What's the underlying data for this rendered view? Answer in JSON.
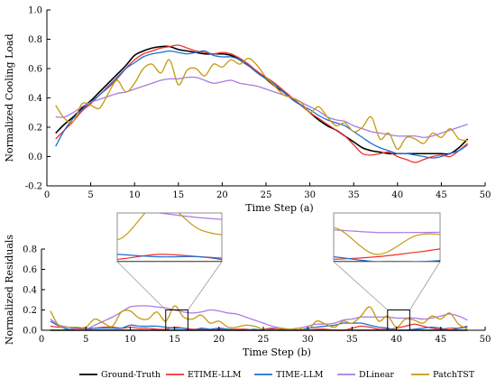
{
  "figure": {
    "legend": [
      {
        "name": "Ground-Truth",
        "color": "#000000"
      },
      {
        "name": "ETIME-LLM",
        "color": "#f0302a"
      },
      {
        "name": "TIME-LLM",
        "color": "#1f6fd6"
      },
      {
        "name": "DLinear",
        "color": "#a97be2"
      },
      {
        "name": "PatchTST",
        "color": "#c39a10"
      }
    ],
    "legend_placement": "bottom-center"
  },
  "chart_data": [
    {
      "type": "line",
      "xlabel": "Time Step (a)",
      "ylabel": "Normalized Cooling Load",
      "xlim": [
        0,
        50
      ],
      "ylim": [
        -0.2,
        1.0
      ],
      "xticks": [
        "0",
        "5",
        "10",
        "15",
        "20",
        "25",
        "30",
        "35",
        "40",
        "45",
        "50"
      ],
      "yticks": [
        "-0.2",
        "0.0",
        "0.2",
        "0.4",
        "0.6",
        "0.8",
        "1.0"
      ],
      "grid": false,
      "x": [
        1,
        2,
        3,
        4,
        5,
        6,
        7,
        8,
        9,
        10,
        11,
        12,
        13,
        14,
        15,
        16,
        17,
        18,
        19,
        20,
        21,
        22,
        23,
        24,
        25,
        26,
        27,
        28,
        29,
        30,
        31,
        32,
        33,
        34,
        35,
        36,
        37,
        38,
        39,
        40,
        41,
        42,
        43,
        44,
        45,
        46,
        47,
        48
      ],
      "series": [
        {
          "name": "Ground-Truth",
          "color": "#000000",
          "values": [
            0.16,
            0.22,
            0.27,
            0.33,
            0.38,
            0.44,
            0.5,
            0.56,
            0.62,
            0.69,
            0.72,
            0.74,
            0.75,
            0.75,
            0.73,
            0.72,
            0.71,
            0.7,
            0.7,
            0.7,
            0.69,
            0.66,
            0.62,
            0.58,
            0.53,
            0.48,
            0.44,
            0.39,
            0.35,
            0.3,
            0.25,
            0.21,
            0.18,
            0.14,
            0.1,
            0.06,
            0.04,
            0.03,
            0.02,
            0.02,
            0.02,
            0.02,
            0.02,
            0.02,
            0.02,
            0.02,
            0.06,
            0.12
          ]
        },
        {
          "name": "ETIME-LLM",
          "color": "#f0302a",
          "values": [
            0.12,
            0.18,
            0.24,
            0.31,
            0.36,
            0.42,
            0.47,
            0.53,
            0.6,
            0.66,
            0.7,
            0.72,
            0.74,
            0.75,
            0.76,
            0.74,
            0.72,
            0.71,
            0.7,
            0.71,
            0.7,
            0.67,
            0.63,
            0.58,
            0.54,
            0.5,
            0.45,
            0.4,
            0.35,
            0.3,
            0.26,
            0.22,
            0.18,
            0.14,
            0.08,
            0.02,
            0.01,
            0.02,
            0.03,
            0.0,
            -0.02,
            -0.04,
            -0.02,
            0.0,
            0.01,
            0.0,
            0.04,
            0.09
          ]
        },
        {
          "name": "TIME-LLM",
          "color": "#1f6fd6",
          "values": [
            0.07,
            0.18,
            0.26,
            0.32,
            0.37,
            0.42,
            0.48,
            0.54,
            0.6,
            0.64,
            0.68,
            0.7,
            0.71,
            0.72,
            0.71,
            0.7,
            0.71,
            0.72,
            0.69,
            0.68,
            0.68,
            0.66,
            0.62,
            0.57,
            0.53,
            0.49,
            0.44,
            0.39,
            0.35,
            0.32,
            0.28,
            0.25,
            0.23,
            0.21,
            0.17,
            0.13,
            0.09,
            0.06,
            0.04,
            0.02,
            0.02,
            0.01,
            0.0,
            -0.01,
            0.0,
            0.02,
            0.04,
            0.08
          ]
        },
        {
          "name": "DLinear",
          "color": "#a97be2",
          "values": [
            0.27,
            0.27,
            0.3,
            0.34,
            0.37,
            0.39,
            0.41,
            0.43,
            0.44,
            0.46,
            0.48,
            0.5,
            0.52,
            0.53,
            0.53,
            0.54,
            0.54,
            0.52,
            0.5,
            0.51,
            0.52,
            0.5,
            0.49,
            0.48,
            0.46,
            0.44,
            0.42,
            0.4,
            0.37,
            0.34,
            0.31,
            0.27,
            0.25,
            0.24,
            0.21,
            0.19,
            0.17,
            0.16,
            0.15,
            0.14,
            0.14,
            0.14,
            0.13,
            0.14,
            0.16,
            0.18,
            0.2,
            0.22
          ]
        },
        {
          "name": "PatchTST",
          "color": "#c39a10",
          "values": [
            0.35,
            0.26,
            0.24,
            0.36,
            0.35,
            0.33,
            0.43,
            0.52,
            0.44,
            0.5,
            0.6,
            0.63,
            0.57,
            0.66,
            0.49,
            0.59,
            0.6,
            0.55,
            0.63,
            0.61,
            0.66,
            0.63,
            0.67,
            0.62,
            0.54,
            0.48,
            0.42,
            0.4,
            0.37,
            0.3,
            0.34,
            0.27,
            0.21,
            0.23,
            0.17,
            0.2,
            0.27,
            0.12,
            0.16,
            0.05,
            0.13,
            0.12,
            0.09,
            0.16,
            0.13,
            0.19,
            0.12,
            0.11
          ]
        }
      ]
    },
    {
      "type": "line",
      "xlabel": "Time Step (b)",
      "ylabel": "Normalized Residuals",
      "xlim": [
        0,
        50
      ],
      "ylim": [
        0,
        0.8
      ],
      "xticks": [
        "0",
        "5",
        "10",
        "15",
        "20",
        "25",
        "30",
        "35",
        "40",
        "45",
        "50"
      ],
      "yticks": [
        "0.0",
        "0.2",
        "0.4",
        "0.6",
        "0.8"
      ],
      "grid": false,
      "x": [
        1,
        2,
        3,
        4,
        5,
        6,
        7,
        8,
        9,
        10,
        11,
        12,
        13,
        14,
        15,
        16,
        17,
        18,
        19,
        20,
        21,
        22,
        23,
        24,
        25,
        26,
        27,
        28,
        29,
        30,
        31,
        32,
        33,
        34,
        35,
        36,
        37,
        38,
        39,
        40,
        41,
        42,
        43,
        44,
        45,
        46,
        47,
        48
      ],
      "series": [
        {
          "name": "Ground-Truth",
          "color": "#000000",
          "values": [
            0,
            0,
            0,
            0,
            0,
            0,
            0,
            0,
            0,
            0,
            0,
            0,
            0,
            0,
            0,
            0,
            0,
            0,
            0,
            0,
            0,
            0,
            0,
            0,
            0,
            0,
            0,
            0,
            0,
            0,
            0,
            0,
            0,
            0,
            0,
            0,
            0,
            0,
            0,
            0,
            0,
            0,
            0,
            0,
            0,
            0,
            0,
            0
          ]
        },
        {
          "name": "ETIME-LLM",
          "color": "#f0302a",
          "values": [
            0.04,
            0.03,
            0.03,
            0.02,
            0.02,
            0.02,
            0.03,
            0.03,
            0.02,
            0.03,
            0.02,
            0.02,
            0.01,
            0.01,
            0.03,
            0.02,
            0.01,
            0.01,
            0.0,
            0.01,
            0.01,
            0.01,
            0.01,
            0.0,
            0.01,
            0.02,
            0.01,
            0.01,
            0.0,
            0.0,
            0.01,
            0.01,
            0.0,
            0.0,
            0.02,
            0.04,
            0.03,
            0.01,
            0.01,
            0.02,
            0.04,
            0.06,
            0.04,
            0.02,
            0.01,
            0.02,
            0.02,
            0.03
          ]
        },
        {
          "name": "TIME-LLM",
          "color": "#1f6fd6",
          "values": [
            0.09,
            0.04,
            0.01,
            0.01,
            0.01,
            0.02,
            0.02,
            0.02,
            0.02,
            0.05,
            0.04,
            0.04,
            0.04,
            0.03,
            0.02,
            0.02,
            0.0,
            0.02,
            0.01,
            0.02,
            0.01,
            0.0,
            0.0,
            0.01,
            0.0,
            0.01,
            0.0,
            0.0,
            0.0,
            0.02,
            0.03,
            0.04,
            0.05,
            0.07,
            0.07,
            0.07,
            0.05,
            0.03,
            0.02,
            0.0,
            0.0,
            0.01,
            0.02,
            0.03,
            0.02,
            0.0,
            0.02,
            0.04
          ]
        },
        {
          "name": "DLinear",
          "color": "#a97be2",
          "values": [
            0.11,
            0.05,
            0.03,
            0.01,
            0.01,
            0.05,
            0.09,
            0.13,
            0.18,
            0.23,
            0.24,
            0.24,
            0.23,
            0.22,
            0.2,
            0.18,
            0.17,
            0.18,
            0.2,
            0.19,
            0.17,
            0.16,
            0.13,
            0.1,
            0.07,
            0.04,
            0.02,
            0.01,
            0.02,
            0.04,
            0.06,
            0.06,
            0.07,
            0.1,
            0.11,
            0.13,
            0.13,
            0.13,
            0.13,
            0.12,
            0.12,
            0.12,
            0.11,
            0.12,
            0.14,
            0.16,
            0.14,
            0.1
          ]
        },
        {
          "name": "PatchTST",
          "color": "#c39a10",
          "values": [
            0.19,
            0.04,
            0.03,
            0.03,
            0.03,
            0.11,
            0.07,
            0.04,
            0.18,
            0.19,
            0.12,
            0.11,
            0.18,
            0.09,
            0.24,
            0.13,
            0.11,
            0.15,
            0.07,
            0.09,
            0.03,
            0.03,
            0.05,
            0.04,
            0.01,
            0.0,
            0.02,
            0.01,
            0.02,
            0.0,
            0.09,
            0.06,
            0.03,
            0.09,
            0.07,
            0.14,
            0.23,
            0.09,
            0.14,
            0.03,
            0.11,
            0.1,
            0.07,
            0.14,
            0.11,
            0.17,
            0.06,
            0.01
          ]
        }
      ]
    }
  ]
}
